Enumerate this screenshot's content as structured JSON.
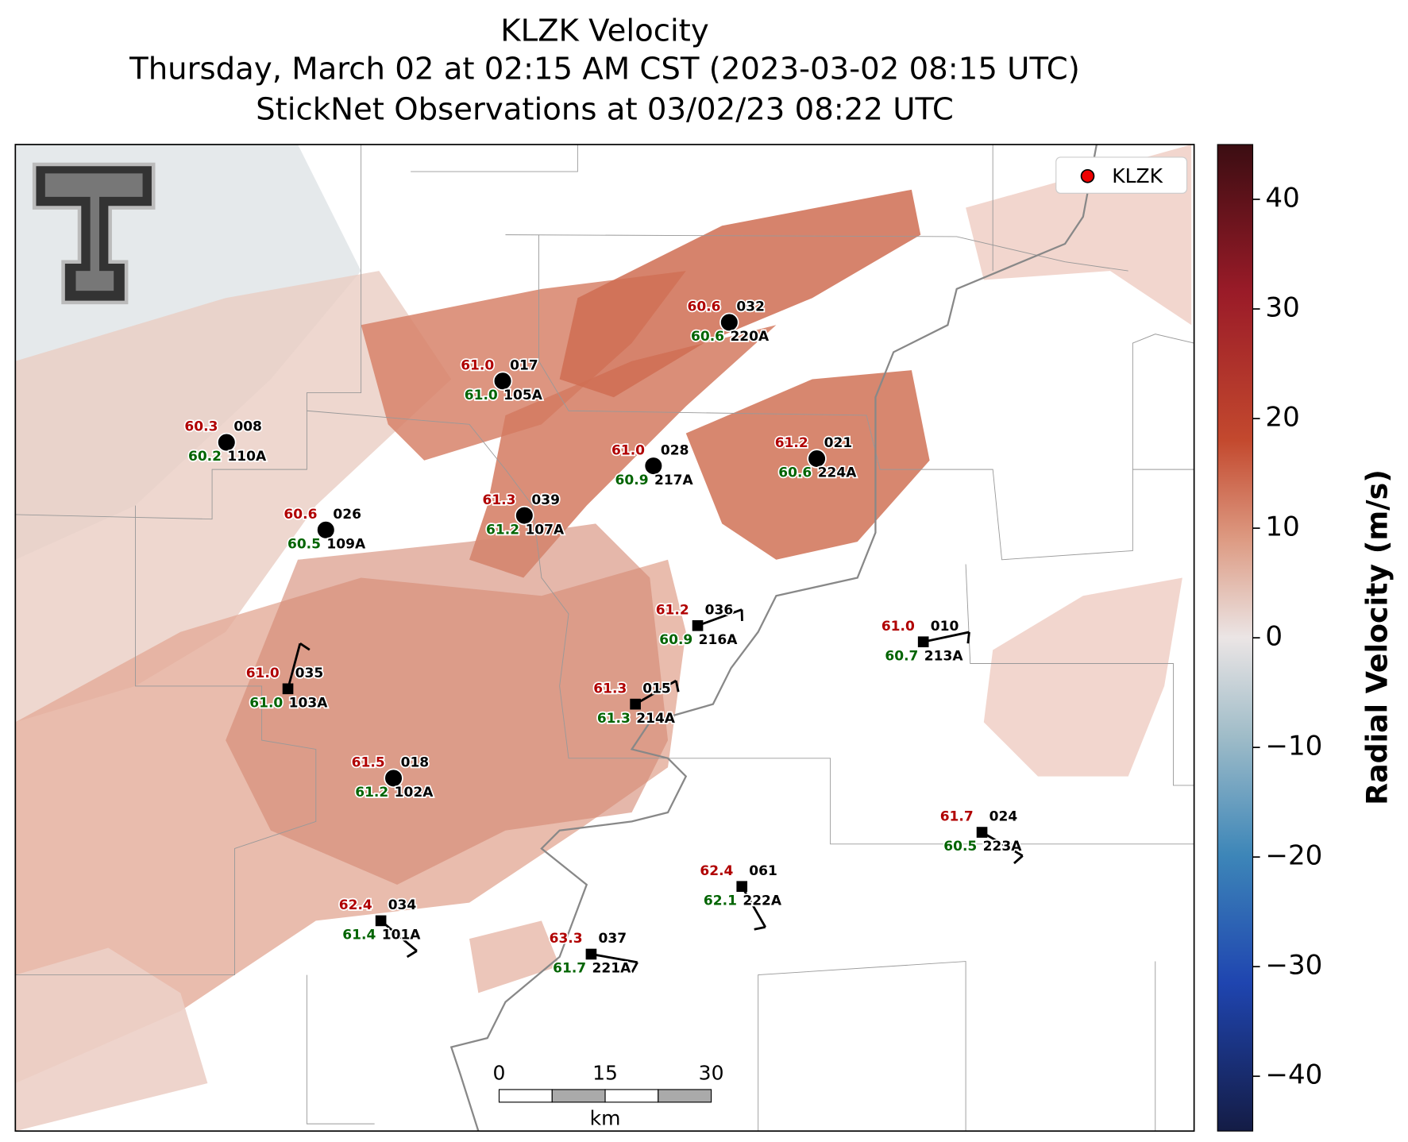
{
  "header": {
    "title": "KLZK Velocity",
    "subtitle": "Thursday, March 02 at 02:15 AM CST (2023-03-02 08:15 UTC)",
    "observations": "StickNet Observations at 03/02/23 08:22 UTC"
  },
  "legend": {
    "label": "KLZK"
  },
  "colorbar": {
    "label": "Radial Velocity (m/s)",
    "lim": [
      -45,
      45
    ],
    "ticks": [
      40,
      30,
      20,
      10,
      0,
      {
        "value": -10,
        "label": "−10"
      },
      {
        "value": -20,
        "label": "−20"
      },
      {
        "value": -30,
        "label": "−30"
      },
      {
        "value": -40,
        "label": "−40"
      }
    ]
  },
  "scale_bar": {
    "ticks": [
      0,
      15,
      30
    ],
    "unit": "km"
  },
  "stations": [
    {
      "id": "110A",
      "code": "008",
      "red": "60.3",
      "green": "60.2"
    },
    {
      "id": "105A",
      "code": "017",
      "red": "61.0",
      "green": "61.0"
    },
    {
      "id": "220A",
      "code": "032",
      "red": "60.6",
      "green": "60.6"
    },
    {
      "id": "217A",
      "code": "028",
      "red": "61.0",
      "green": "60.9"
    },
    {
      "id": "224A",
      "code": "021",
      "red": "61.2",
      "green": "60.6"
    },
    {
      "id": "109A",
      "code": "026",
      "red": "60.6",
      "green": "60.5"
    },
    {
      "id": "107A",
      "code": "039",
      "red": "61.3",
      "green": "61.2"
    },
    {
      "id": "216A",
      "code": "036",
      "red": "61.2",
      "green": "60.9"
    },
    {
      "id": "213A",
      "code": "010",
      "red": "61.0",
      "green": "60.7"
    },
    {
      "id": "103A",
      "code": "035",
      "red": "61.0",
      "green": "61.0"
    },
    {
      "id": "214A",
      "code": "015",
      "red": "61.3",
      "green": "61.3"
    },
    {
      "id": "102A",
      "code": "018",
      "red": "61.5",
      "green": "61.2"
    },
    {
      "id": "223A",
      "code": "024",
      "red": "61.7",
      "green": "60.5"
    },
    {
      "id": "222A",
      "code": "061",
      "red": "62.4",
      "green": "62.1"
    },
    {
      "id": "101A",
      "code": "034",
      "red": "62.4",
      "green": "61.4"
    },
    {
      "id": "221A",
      "code": "037",
      "red": "63.3",
      "green": "61.7"
    }
  ]
}
